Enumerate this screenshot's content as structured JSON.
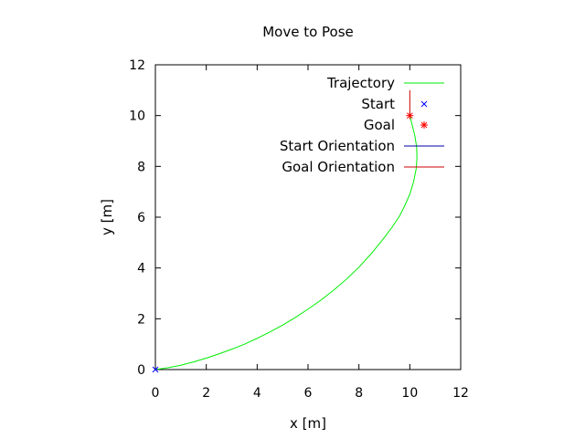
{
  "chart_data": {
    "type": "line",
    "title": "Move to Pose",
    "xlabel": "x [m]",
    "ylabel": "y [m]",
    "xlim": [
      0,
      12
    ],
    "ylim": [
      0,
      12
    ],
    "xticks": [
      0,
      2,
      4,
      6,
      8,
      10,
      12
    ],
    "yticks": [
      0,
      2,
      4,
      6,
      8,
      10,
      12
    ],
    "grid": false,
    "legend_position": "top-right",
    "series": [
      {
        "name": "Trajectory",
        "kind": "line",
        "color": "#00ee00",
        "x": [
          0,
          0.5,
          1,
          1.5,
          2,
          2.5,
          3,
          3.5,
          4,
          4.5,
          5,
          5.5,
          6,
          6.5,
          7,
          7.5,
          8,
          8.5,
          9,
          9.3,
          9.6,
          9.8,
          10.0,
          10.15,
          10.25,
          10.28,
          10.27,
          10.2,
          10.1,
          10.0
        ],
        "y": [
          0,
          0.07,
          0.17,
          0.3,
          0.45,
          0.62,
          0.8,
          1.0,
          1.23,
          1.48,
          1.75,
          2.05,
          2.38,
          2.73,
          3.12,
          3.55,
          4.03,
          4.58,
          5.2,
          5.6,
          6.05,
          6.45,
          6.9,
          7.4,
          7.9,
          8.3,
          8.75,
          9.2,
          9.6,
          10.0
        ]
      },
      {
        "name": "Start",
        "kind": "point",
        "marker": "x",
        "color": "#0000ff",
        "x": [
          0
        ],
        "y": [
          0
        ]
      },
      {
        "name": "Goal",
        "kind": "point",
        "marker": "star",
        "color": "#ff0000",
        "x": [
          10
        ],
        "y": [
          10
        ]
      },
      {
        "name": "Start Orientation",
        "kind": "segment",
        "color": "#0000aa",
        "x": [
          0,
          0.1
        ],
        "y": [
          0,
          0
        ]
      },
      {
        "name": "Goal Orientation",
        "kind": "segment",
        "color": "#cc0000",
        "x": [
          10,
          10
        ],
        "y": [
          10,
          11
        ]
      }
    ]
  }
}
